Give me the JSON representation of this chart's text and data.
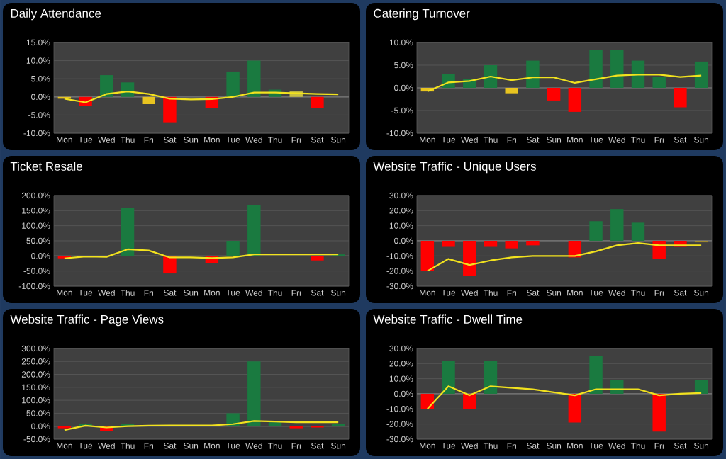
{
  "chart_data": [
    {
      "type": "bar",
      "title": "Daily Attendance",
      "categories": [
        "Mon",
        "Tue",
        "Wed",
        "Thu",
        "Fri",
        "Sat",
        "Sun",
        "Mon",
        "Tue",
        "Wed",
        "Thu",
        "Fri",
        "Sat",
        "Sun"
      ],
      "ylim": [
        -10,
        15
      ],
      "yticks": [
        {
          "value": -10,
          "label": "-10.0%"
        },
        {
          "value": -5,
          "label": "-5.0%"
        },
        {
          "value": 0,
          "label": "0.0%"
        },
        {
          "value": 5,
          "label": "5.0%"
        },
        {
          "value": 10,
          "label": "10.0%"
        },
        {
          "value": 15,
          "label": "15.0%"
        }
      ],
      "grid": "y",
      "series": [
        {
          "values": [
            -0.5,
            -2.5,
            6,
            4,
            -2,
            -7,
            null,
            -3,
            7,
            10,
            2,
            1.5,
            -3,
            null
          ],
          "colors": [
            "#e8c420",
            "#ff0000",
            "#1a7a40",
            "#1a7a40",
            "#e8c420",
            "#ff0000",
            null,
            "#ff0000",
            "#1a7a40",
            "#1a7a40",
            "#1a7a40",
            "#c8c040",
            "#ff0000",
            null
          ]
        },
        {
          "type": "line",
          "color": "#f2e21e",
          "values": [
            -0.5,
            -1.5,
            0.8,
            1.5,
            0.8,
            -0.5,
            -0.7,
            -0.6,
            0,
            1.2,
            1.2,
            1,
            0.8,
            0.7
          ]
        }
      ]
    },
    {
      "type": "bar",
      "title": "Catering Turnover",
      "categories": [
        "Mon",
        "Tue",
        "Wed",
        "Thu",
        "Fri",
        "Sat",
        "Sun",
        "Mon",
        "Tue",
        "Wed",
        "Thu",
        "Fri",
        "Sat",
        "Sun"
      ],
      "ylim": [
        -10,
        10
      ],
      "yticks": [
        {
          "value": -10,
          "label": "-10.0%"
        },
        {
          "value": -5,
          "label": "-5.0%"
        },
        {
          "value": 0,
          "label": "0.0%"
        },
        {
          "value": 5,
          "label": "5.0%"
        },
        {
          "value": 10,
          "label": "10.0%"
        }
      ],
      "grid": "y",
      "series": [
        {
          "values": [
            -0.8,
            3,
            2,
            5,
            -1.2,
            6,
            -2.8,
            -5.3,
            8.3,
            8.3,
            6,
            2.5,
            -4.3,
            5.8
          ],
          "colors": [
            "#e8c420",
            "#1a7a40",
            "#1a7a40",
            "#1a7a40",
            "#e8c420",
            "#1a7a40",
            "#ff0000",
            "#ff0000",
            "#1a7a40",
            "#1a7a40",
            "#1a7a40",
            "#1a7a40",
            "#ff0000",
            "#1a7a40"
          ]
        },
        {
          "type": "line",
          "color": "#f2e21e",
          "values": [
            -0.8,
            1.2,
            1.5,
            2.5,
            1.7,
            2.3,
            2.3,
            1.1,
            1.9,
            2.7,
            2.9,
            2.9,
            2.4,
            2.7
          ]
        }
      ]
    },
    {
      "type": "bar",
      "title": "Ticket Resale",
      "categories": [
        "Mon",
        "Tue",
        "Wed",
        "Thu",
        "Fri",
        "Sat",
        "Sun",
        "Mon",
        "Tue",
        "Wed",
        "Thu",
        "Fri",
        "Sat",
        "Sun"
      ],
      "ylim": [
        -100,
        200
      ],
      "yticks": [
        {
          "value": -100,
          "label": "-100.0%"
        },
        {
          "value": -50,
          "label": "-50.0%"
        },
        {
          "value": 0,
          "label": "0.0%"
        },
        {
          "value": 50,
          "label": "50.0%"
        },
        {
          "value": 100,
          "label": "100.0%"
        },
        {
          "value": 150,
          "label": "150.0%"
        },
        {
          "value": 200,
          "label": "200.0%"
        }
      ],
      "grid": "y",
      "series": [
        {
          "values": [
            -8,
            null,
            null,
            160,
            null,
            -58,
            null,
            -25,
            50,
            168,
            null,
            null,
            -15,
            5
          ],
          "colors": [
            "#ff0000",
            null,
            null,
            "#1a7a40",
            null,
            "#ff0000",
            null,
            "#ff0000",
            "#1a7a40",
            "#1a7a40",
            null,
            null,
            "#ff0000",
            "#1a7a40"
          ]
        },
        {
          "type": "line",
          "color": "#f2e21e",
          "values": [
            -8,
            -2,
            -3,
            22,
            18,
            -5,
            -5,
            -7,
            -5,
            5,
            5,
            5,
            5,
            5
          ]
        }
      ]
    },
    {
      "type": "bar",
      "title": "Website Traffic - Unique Users",
      "categories": [
        "Mon",
        "Tue",
        "Wed",
        "Thu",
        "Fri",
        "Sat",
        "Sun",
        "Mon",
        "Tue",
        "Wed",
        "Thu",
        "Fri",
        "Sat",
        "Sun"
      ],
      "ylim": [
        -30,
        30
      ],
      "yticks": [
        {
          "value": -30,
          "label": "-30.0%"
        },
        {
          "value": -20,
          "label": "-20.0%"
        },
        {
          "value": -10,
          "label": "-10.0%"
        },
        {
          "value": 0,
          "label": "0.0%"
        },
        {
          "value": 10,
          "label": "10.0%"
        },
        {
          "value": 20,
          "label": "20.0%"
        },
        {
          "value": 30,
          "label": "30.0%"
        }
      ],
      "grid": "y",
      "series": [
        {
          "values": [
            -20,
            -4,
            -23,
            -4,
            -5,
            -3,
            null,
            -11,
            13,
            21,
            12,
            -12,
            -4,
            -1
          ],
          "colors": [
            "#ff0000",
            "#ff0000",
            "#ff0000",
            "#ff0000",
            "#ff0000",
            "#ff0000",
            null,
            "#ff0000",
            "#1a7a40",
            "#1a7a40",
            "#1a7a40",
            "#ff0000",
            "#ff0000",
            "#a08a30"
          ]
        },
        {
          "type": "line",
          "color": "#f2e21e",
          "values": [
            -20,
            -12,
            -16,
            -13,
            -11,
            -10,
            -10,
            -10,
            -7,
            -3,
            -1.5,
            -3,
            -3,
            -3
          ]
        }
      ]
    },
    {
      "type": "bar",
      "title": "Website Traffic - Page Views",
      "categories": [
        "Mon",
        "Tue",
        "Wed",
        "Thu",
        "Fri",
        "Sat",
        "Sun",
        "Mon",
        "Tue",
        "Wed",
        "Thu",
        "Fri",
        "Sat",
        "Sun"
      ],
      "ylim": [
        -50,
        300
      ],
      "yticks": [
        {
          "value": -50,
          "label": "-50.0%"
        },
        {
          "value": 0,
          "label": "0.0%"
        },
        {
          "value": 50,
          "label": "50.0%"
        },
        {
          "value": 100,
          "label": "100.0%"
        },
        {
          "value": 150,
          "label": "150.0%"
        },
        {
          "value": 200,
          "label": "200.0%"
        },
        {
          "value": 250,
          "label": "250.0%"
        },
        {
          "value": 300,
          "label": "300.0%"
        }
      ],
      "grid": "y",
      "series": [
        {
          "values": [
            -8,
            8,
            -18,
            8,
            null,
            null,
            null,
            null,
            50,
            250,
            15,
            -8,
            -5,
            8
          ],
          "colors": [
            "#ff0000",
            "#1a7a40",
            "#ff0000",
            "#1a7a40",
            null,
            null,
            null,
            null,
            "#1a7a40",
            "#1a7a40",
            "#1a7a40",
            "#ff0000",
            "#ff0000",
            "#1a7a40"
          ]
        },
        {
          "type": "line",
          "color": "#f2e21e",
          "values": [
            -15,
            2,
            -5,
            0,
            2,
            3,
            3,
            3,
            8,
            20,
            18,
            15,
            15,
            15
          ]
        }
      ]
    },
    {
      "type": "bar",
      "title": "Website Traffic - Dwell Time",
      "categories": [
        "Mon",
        "Tue",
        "Wed",
        "Thu",
        "Fri",
        "Sat",
        "Sun",
        "Mon",
        "Tue",
        "Wed",
        "Thu",
        "Fri",
        "Sat",
        "Sun"
      ],
      "ylim": [
        -30,
        30
      ],
      "yticks": [
        {
          "value": -30,
          "label": "-30.0%"
        },
        {
          "value": -20,
          "label": "-20.0%"
        },
        {
          "value": -10,
          "label": "-10.0%"
        },
        {
          "value": 0,
          "label": "0.0%"
        },
        {
          "value": 10,
          "label": "10.0%"
        },
        {
          "value": 20,
          "label": "20.0%"
        },
        {
          "value": 30,
          "label": "30.0%"
        }
      ],
      "grid": "y",
      "series": [
        {
          "values": [
            -10,
            22,
            -10,
            22,
            null,
            null,
            null,
            -19,
            25,
            9,
            null,
            -25,
            null,
            9
          ],
          "colors": [
            "#ff0000",
            "#1a7a40",
            "#ff0000",
            "#1a7a40",
            null,
            null,
            null,
            "#ff0000",
            "#1a7a40",
            "#1a7a40",
            null,
            "#ff0000",
            null,
            "#1a7a40"
          ]
        },
        {
          "type": "line",
          "color": "#f2e21e",
          "values": [
            -10,
            5,
            -1,
            5,
            4,
            3,
            1,
            -1,
            3,
            3,
            3,
            -1,
            0,
            0.5
          ]
        }
      ]
    }
  ]
}
